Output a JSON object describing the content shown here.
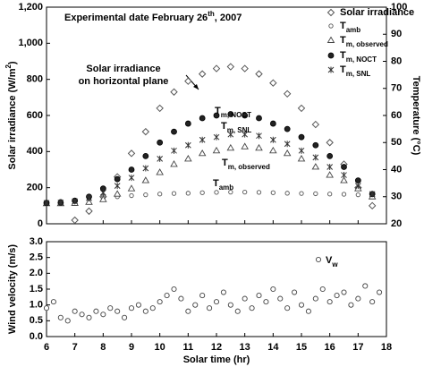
{
  "chart_data": [
    {
      "type": "scatter",
      "title": [
        "Experimental date February  26",
        "th",
        ", 2007"
      ],
      "ylabel": [
        "Solar irradiance (W/m",
        "2",
        ")"
      ],
      "y2label": "Temperature (°C)",
      "xlim": [
        6,
        18
      ],
      "xticks": [
        6,
        7,
        8,
        9,
        10,
        11,
        12,
        13,
        14,
        15,
        16,
        17,
        18
      ],
      "ylim": [
        0,
        1200
      ],
      "yticks": [
        0,
        200,
        400,
        600,
        800,
        {
          "value": 1000,
          "label": "1,000"
        },
        {
          "value": 1200,
          "label": "1,200"
        }
      ],
      "y2lim": [
        20,
        100
      ],
      "y2ticks": [
        20,
        30,
        40,
        50,
        60,
        70,
        80,
        90,
        100
      ],
      "annotations": [
        {
          "text": [
            "Solar irradiance",
            "on horizontal plane"
          ]
        },
        {
          "text": "T",
          "sub": "m, NOCT"
        },
        {
          "text": "T",
          "sub": "m, SNL"
        },
        {
          "text": "T",
          "sub": "m, observed"
        },
        {
          "text": "T",
          "sub": "amb"
        }
      ],
      "x": [
        6,
        6.5,
        7,
        7.5,
        8,
        8.5,
        9,
        9.5,
        10,
        10.5,
        11,
        11.5,
        12,
        12.5,
        13,
        13.5,
        14,
        14.5,
        15,
        15.5,
        16,
        16.5,
        17,
        17.5
      ],
      "series": [
        {
          "name": "Solar irradiance",
          "marker": "diamond",
          "color": "#555555",
          "axis": "y",
          "values": [
            null,
            null,
            20,
            70,
            150,
            260,
            390,
            510,
            640,
            730,
            790,
            830,
            860,
            870,
            860,
            830,
            780,
            720,
            640,
            550,
            450,
            330,
            200,
            100
          ]
        },
        {
          "name": "T",
          "subscript": "amb",
          "marker": "circle",
          "color": "#555555",
          "axis": "y2",
          "values": [
            28,
            28.3,
            28.8,
            29.2,
            29.6,
            30,
            30.4,
            30.7,
            31,
            31.2,
            31.3,
            31.5,
            31.6,
            31.7,
            31.7,
            31.6,
            31.5,
            31.3,
            31.2,
            31.1,
            31,
            30.9,
            30.7,
            30.5
          ]
        },
        {
          "name": "T",
          "subscript": "m, observed",
          "marker": "triangle",
          "color": "#444444",
          "axis": "y2",
          "values": [
            27.5,
            27.5,
            27.6,
            28,
            29,
            31,
            33,
            36,
            39,
            42,
            44,
            46,
            47,
            48,
            48.5,
            48,
            47,
            46,
            44,
            41,
            38,
            36,
            33,
            30
          ]
        },
        {
          "name": "T",
          "subscript": "m, NOCT",
          "marker": "filled-circle",
          "color": "#222222",
          "axis": "y2",
          "values": [
            27.7,
            27.8,
            28.5,
            30,
            33,
            36.5,
            40,
            45,
            50,
            54,
            57,
            59,
            60,
            60.5,
            60,
            59,
            57,
            55,
            52,
            49,
            45,
            41,
            36,
            31
          ]
        },
        {
          "name": "T",
          "subscript": "m, SNL",
          "marker": "asterisk",
          "color": "#333333",
          "axis": "y2",
          "values": [
            27.7,
            27.8,
            28.3,
            29.5,
            31.5,
            34,
            37,
            40.5,
            44,
            47,
            49,
            51,
            52,
            53,
            53,
            52.5,
            51,
            49.5,
            47,
            44.5,
            41,
            38,
            34,
            31
          ]
        }
      ]
    },
    {
      "type": "scatter",
      "xlabel": "Solar time (hr)",
      "ylabel": "Wind velocity (m/s)",
      "xlim": [
        6,
        18
      ],
      "xticks": [
        6,
        7,
        8,
        9,
        10,
        11,
        12,
        13,
        14,
        15,
        16,
        17,
        18
      ],
      "ylim": [
        0,
        3
      ],
      "yticks": [
        {
          "value": 0,
          "label": "0.0"
        },
        0.5,
        {
          "value": 1,
          "label": "1.0"
        },
        1.5,
        {
          "value": 2,
          "label": "2.0"
        },
        2.5,
        {
          "value": 3,
          "label": "3.0"
        }
      ],
      "x": [
        6,
        6.25,
        6.5,
        6.75,
        7,
        7.25,
        7.5,
        7.75,
        8,
        8.25,
        8.5,
        8.75,
        9,
        9.25,
        9.5,
        9.75,
        10,
        10.25,
        10.5,
        10.75,
        11,
        11.25,
        11.5,
        11.75,
        12,
        12.25,
        12.5,
        12.75,
        13,
        13.25,
        13.5,
        13.75,
        14,
        14.25,
        14.5,
        14.75,
        15,
        15.25,
        15.5,
        15.75,
        16,
        16.25,
        16.5,
        16.75,
        17,
        17.25,
        17.5,
        17.75
      ],
      "series": [
        {
          "name": "V",
          "subscript": "w",
          "marker": "circle-lg",
          "color": "#444444",
          "values": [
            0.9,
            1.1,
            0.6,
            0.5,
            0.8,
            0.7,
            0.6,
            0.8,
            0.7,
            0.9,
            0.8,
            0.6,
            0.9,
            1.0,
            0.8,
            0.9,
            1.1,
            1.3,
            1.5,
            1.2,
            0.8,
            1.0,
            1.3,
            0.9,
            1.1,
            1.4,
            1.0,
            0.8,
            1.2,
            0.9,
            1.3,
            1.1,
            1.5,
            1.2,
            0.9,
            1.4,
            1.0,
            0.8,
            1.2,
            1.5,
            1.1,
            1.3,
            1.4,
            1.0,
            1.2,
            1.6,
            1.1,
            1.4
          ]
        }
      ]
    }
  ]
}
